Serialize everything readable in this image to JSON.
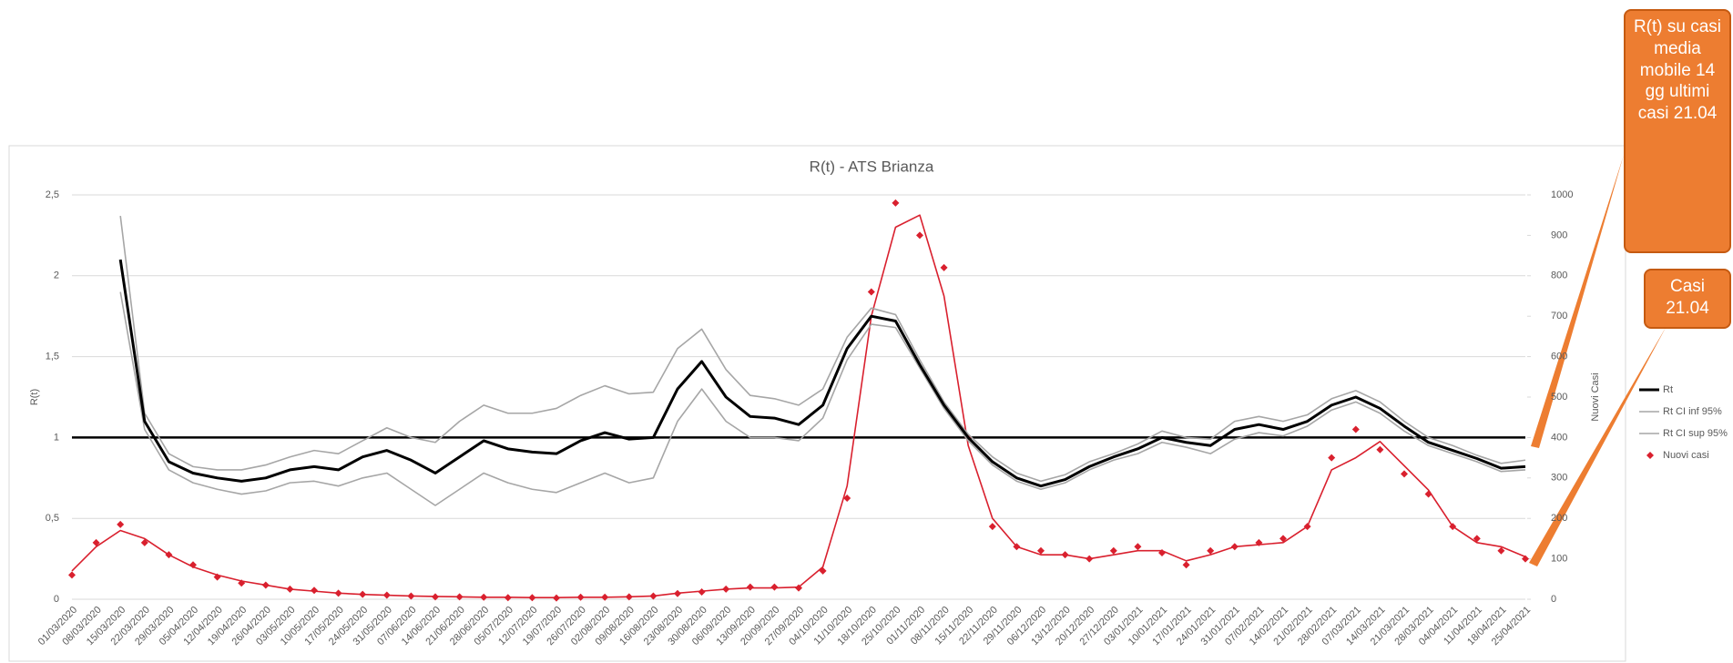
{
  "chart_data": {
    "type": "line",
    "title": "R(t) - ATS Brianza",
    "y_label": "R(t)",
    "y2_label": "Nuovi Casi",
    "categories": [
      "01/03/2020",
      "08/03/2020",
      "15/03/2020",
      "22/03/2020",
      "29/03/2020",
      "05/04/2020",
      "12/04/2020",
      "19/04/2020",
      "26/04/2020",
      "03/05/2020",
      "10/05/2020",
      "17/05/2020",
      "24/05/2020",
      "31/05/2020",
      "07/06/2020",
      "14/06/2020",
      "21/06/2020",
      "28/06/2020",
      "05/07/2020",
      "12/07/2020",
      "19/07/2020",
      "26/07/2020",
      "02/08/2020",
      "09/08/2020",
      "16/08/2020",
      "23/08/2020",
      "30/08/2020",
      "06/09/2020",
      "13/09/2020",
      "20/09/2020",
      "27/09/2020",
      "04/10/2020",
      "11/10/2020",
      "18/10/2020",
      "25/10/2020",
      "01/11/2020",
      "08/11/2020",
      "15/11/2020",
      "22/11/2020",
      "29/11/2020",
      "06/12/2020",
      "13/12/2020",
      "20/12/2020",
      "27/12/2020",
      "03/01/2021",
      "10/01/2021",
      "17/01/2021",
      "24/01/2021",
      "31/01/2021",
      "07/02/2021",
      "14/02/2021",
      "21/02/2021",
      "28/02/2021",
      "07/03/2021",
      "14/03/2021",
      "21/03/2021",
      "28/03/2021",
      "04/04/2021",
      "11/04/2021",
      "18/04/2021",
      "25/04/2021"
    ],
    "ylim": [
      0,
      2.5
    ],
    "yticks": [
      0,
      {
        "value": 0.5,
        "label": "0,5"
      },
      1,
      {
        "value": 1.5,
        "label": "1,5"
      },
      2,
      {
        "value": 2.5,
        "label": "2,5"
      }
    ],
    "y2lim": [
      0,
      1000
    ],
    "y2ticks": [
      0,
      100,
      200,
      300,
      400,
      500,
      600,
      700,
      800,
      900,
      1000
    ],
    "grid": true,
    "reference_line": 1,
    "series": [
      {
        "name": "Rt",
        "color": "#000000",
        "width": 3,
        "values": [
          null,
          null,
          2.1,
          1.1,
          0.85,
          0.78,
          0.75,
          0.73,
          0.75,
          0.8,
          0.82,
          0.8,
          0.88,
          0.92,
          0.86,
          0.78,
          0.88,
          0.98,
          0.93,
          0.91,
          0.9,
          0.98,
          1.03,
          0.99,
          1.0,
          1.3,
          1.47,
          1.25,
          1.13,
          1.12,
          1.08,
          1.2,
          1.55,
          1.75,
          1.72,
          1.45,
          1.2,
          1.0,
          0.85,
          0.75,
          0.7,
          0.74,
          0.82,
          0.88,
          0.93,
          1.0,
          0.97,
          0.95,
          1.05,
          1.08,
          1.05,
          1.1,
          1.2,
          1.25,
          1.18,
          1.07,
          0.97,
          0.92,
          0.87,
          0.81,
          0.82
        ]
      },
      {
        "name": "Rt CI inf 95%",
        "color": "#a6a6a6",
        "width": 1.6,
        "values": [
          null,
          null,
          1.9,
          1.05,
          0.8,
          0.72,
          0.68,
          0.65,
          0.67,
          0.72,
          0.73,
          0.7,
          0.75,
          0.78,
          0.68,
          0.58,
          0.68,
          0.78,
          0.72,
          0.68,
          0.66,
          0.72,
          0.78,
          0.72,
          0.75,
          1.1,
          1.3,
          1.1,
          1.0,
          1.0,
          0.98,
          1.12,
          1.48,
          1.7,
          1.68,
          1.43,
          1.18,
          0.98,
          0.83,
          0.73,
          0.68,
          0.72,
          0.8,
          0.86,
          0.9,
          0.97,
          0.94,
          0.9,
          0.99,
          1.03,
          1.01,
          1.07,
          1.17,
          1.22,
          1.15,
          1.04,
          0.95,
          0.9,
          0.85,
          0.79,
          0.8
        ]
      },
      {
        "name": "Rt CI sup 95%",
        "color": "#a6a6a6",
        "width": 1.6,
        "values": [
          null,
          null,
          2.37,
          1.15,
          0.9,
          0.82,
          0.8,
          0.8,
          0.83,
          0.88,
          0.92,
          0.9,
          0.98,
          1.06,
          1.0,
          0.97,
          1.1,
          1.2,
          1.15,
          1.15,
          1.18,
          1.26,
          1.32,
          1.27,
          1.28,
          1.55,
          1.67,
          1.42,
          1.26,
          1.24,
          1.2,
          1.3,
          1.62,
          1.8,
          1.76,
          1.48,
          1.22,
          1.02,
          0.88,
          0.78,
          0.73,
          0.77,
          0.85,
          0.9,
          0.96,
          1.04,
          1.0,
          0.99,
          1.1,
          1.13,
          1.1,
          1.14,
          1.24,
          1.29,
          1.22,
          1.1,
          1.0,
          0.95,
          0.89,
          0.84,
          0.86
        ]
      },
      {
        "name": "Nuovi casi",
        "color": "#d9202e",
        "axis": "y2",
        "marker": "diamond",
        "values": [
          60,
          140,
          185,
          140,
          110,
          85,
          55,
          40,
          35,
          25,
          22,
          15,
          12,
          10,
          8,
          6,
          6,
          5,
          4,
          4,
          3,
          5,
          5,
          6,
          8,
          14,
          18,
          25,
          30,
          30,
          28,
          70,
          250,
          760,
          980,
          900,
          820,
          400,
          180,
          130,
          120,
          110,
          100,
          120,
          130,
          115,
          85,
          120,
          130,
          140,
          150,
          180,
          350,
          420,
          370,
          310,
          260,
          180,
          150,
          120,
          100
        ]
      },
      {
        "color": "#d9202e",
        "axis": "y2",
        "width": 1.6,
        "values": [
          70,
          130,
          170,
          150,
          110,
          80,
          60,
          45,
          35,
          25,
          20,
          15,
          12,
          10,
          8,
          7,
          6,
          5,
          5,
          4,
          4,
          5,
          5,
          6,
          8,
          15,
          20,
          25,
          28,
          28,
          30,
          80,
          280,
          700,
          920,
          950,
          750,
          380,
          200,
          130,
          110,
          110,
          100,
          110,
          120,
          120,
          95,
          110,
          130,
          135,
          140,
          180,
          320,
          350,
          390,
          330,
          270,
          180,
          140,
          130,
          105
        ]
      }
    ],
    "callouts": [
      "R(t) su casi media mobile 14 gg ultimi casi 21.04",
      "Casi 21.04"
    ]
  }
}
